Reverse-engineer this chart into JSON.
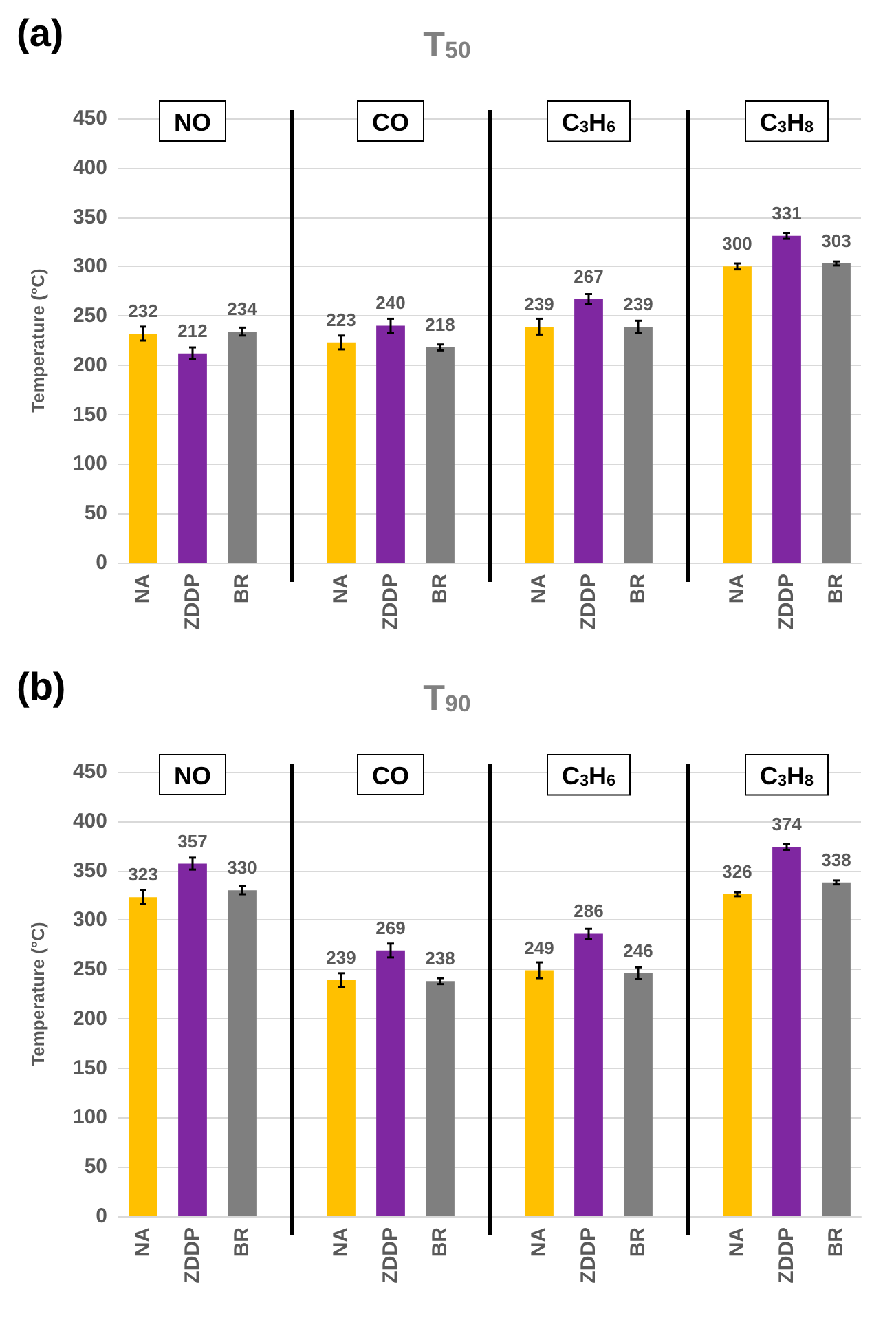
{
  "chart_data": [
    {
      "type": "bar",
      "title": "T$_{50}$",
      "ylabel": "Temperature (°C)",
      "annotations": [
        "(a)",
        "NO",
        "CO",
        "C$_{3}$H$_{6}$",
        "C$_{3}$H$_{8}$"
      ],
      "categories": [
        "NA",
        "ZDDP",
        "BR",
        null,
        "NA",
        "ZDDP",
        "BR",
        null,
        "NA",
        "ZDDP",
        "BR",
        null,
        "NA",
        "ZDDP",
        "BR"
      ],
      "values": [
        232,
        212,
        234,
        null,
        223,
        240,
        218,
        null,
        239,
        267,
        239,
        null,
        300,
        331,
        303
      ],
      "colors": [
        "#ffc000",
        "#7f27a1",
        "#7f7f7f",
        null,
        "#ffc000",
        "#7f27a1",
        "#7f7f7f",
        null,
        "#ffc000",
        "#7f27a1",
        "#7f7f7f",
        null,
        "#ffc000",
        "#7f27a1",
        "#7f7f7f"
      ],
      "errors": [
        7,
        6,
        4,
        null,
        7,
        7,
        3,
        null,
        8,
        5,
        6,
        null,
        3,
        3,
        2
      ],
      "ylim": [
        0,
        450
      ],
      "yticks": [
        0,
        50,
        100,
        150,
        200,
        250,
        300,
        350,
        400,
        450
      ],
      "grid": "y",
      "data_labels": true
    },
    {
      "type": "bar",
      "title": "T$_{90}$",
      "ylabel": "Temperature (°C)",
      "annotations": [
        "(b)",
        "NO",
        "CO",
        "C$_{3}$H$_{6}$",
        "C$_{3}$H$_{8}$"
      ],
      "categories": [
        "NA",
        "ZDDP",
        "BR",
        null,
        "NA",
        "ZDDP",
        "BR",
        null,
        "NA",
        "ZDDP",
        "BR",
        null,
        "NA",
        "ZDDP",
        "BR"
      ],
      "values": [
        323,
        357,
        330,
        null,
        239,
        269,
        238,
        null,
        249,
        286,
        246,
        null,
        326,
        374,
        338
      ],
      "colors": [
        "#ffc000",
        "#7f27a1",
        "#7f7f7f",
        null,
        "#ffc000",
        "#7f27a1",
        "#7f7f7f",
        null,
        "#ffc000",
        "#7f27a1",
        "#7f7f7f",
        null,
        "#ffc000",
        "#7f27a1",
        "#7f7f7f"
      ],
      "errors": [
        7,
        6,
        4,
        null,
        7,
        7,
        3,
        null,
        8,
        5,
        6,
        null,
        2,
        3,
        2
      ],
      "ylim": [
        0,
        450
      ],
      "yticks": [
        0,
        50,
        100,
        150,
        200,
        250,
        300,
        350,
        400,
        450
      ],
      "grid": "y",
      "data_labels": true
    }
  ]
}
